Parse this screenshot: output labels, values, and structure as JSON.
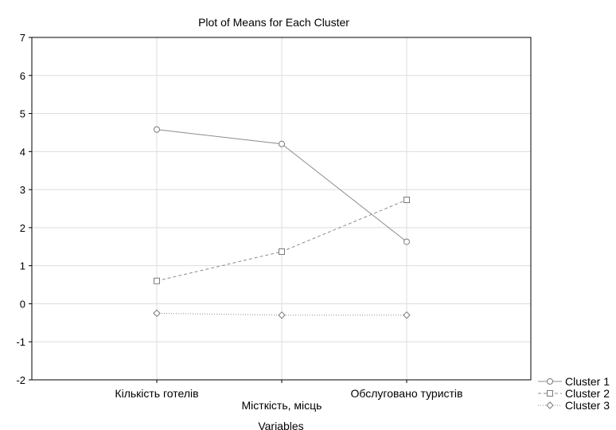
{
  "chart_data": {
    "type": "line",
    "title": "Plot of Means for Each Cluster",
    "xlabel": "Variables",
    "ylabel": "",
    "categories": [
      "Кількість готелів",
      "Місткість, місць",
      "Обслуговано туристів"
    ],
    "ylim": [
      -2,
      7
    ],
    "yticks": [
      7,
      6,
      5,
      4,
      3,
      2,
      1,
      0,
      -1,
      -2
    ],
    "grid": true,
    "legend_position": "bottom-right",
    "series": [
      {
        "name": "Cluster 1",
        "values": [
          4.58,
          4.2,
          1.63
        ],
        "marker": "circle",
        "line_style": "solid",
        "color": "#8c8c8c"
      },
      {
        "name": "Cluster 2",
        "values": [
          0.6,
          1.37,
          2.73
        ],
        "marker": "square",
        "line_style": "dashed",
        "color": "#8c8c8c"
      },
      {
        "name": "Cluster 3",
        "values": [
          -0.25,
          -0.3,
          -0.3
        ],
        "marker": "diamond",
        "line_style": "dotted",
        "color": "#8c8c8c"
      }
    ]
  }
}
